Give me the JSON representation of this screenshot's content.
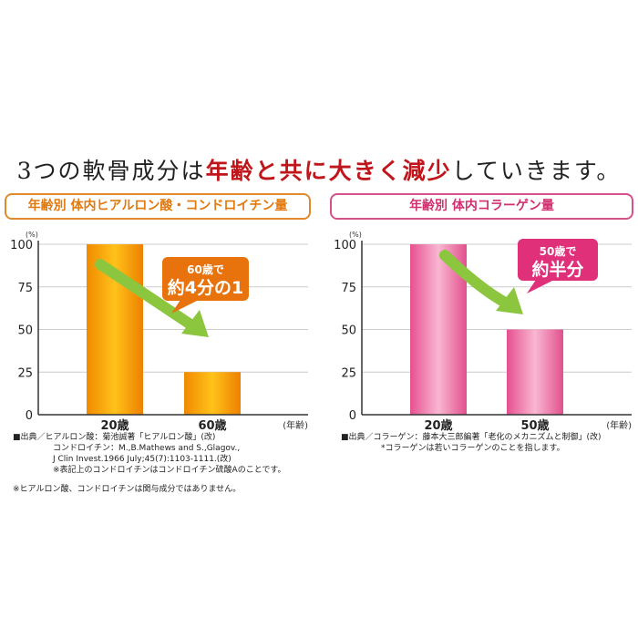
{
  "title": {
    "part1": "3つの軟骨成分は",
    "part2": "年齢と共に大きく減少",
    "part3": "していきます。"
  },
  "chart_data": [
    {
      "type": "bar",
      "title": "年齢別 体内ヒアルロン酸・コンドロイチン量",
      "categories": [
        "20歳",
        "60歳"
      ],
      "values": [
        100,
        25
      ],
      "ylabel": "(%)",
      "xlabel": "(年齢)",
      "ylim": [
        0,
        100
      ],
      "yticks": [
        "0",
        "25",
        "50",
        "75",
        "100"
      ],
      "grid": true,
      "color": "#f39a10",
      "callout": {
        "line1": "60歳で",
        "line2": "約4分の1"
      }
    },
    {
      "type": "bar",
      "title": "年齢別 体内コラーゲン量",
      "categories": [
        "20歳",
        "50歳"
      ],
      "values": [
        100,
        50
      ],
      "ylabel": "(%)",
      "xlabel": "(年齢)",
      "ylim": [
        0,
        100
      ],
      "yticks": [
        "0",
        "25",
        "50",
        "75",
        "100"
      ],
      "grid": true,
      "color": "#ea5a98",
      "callout": {
        "line1": "50歳で",
        "line2": "約半分"
      }
    }
  ],
  "notes_left": [
    "■出典／ヒアルロン酸：菊池誠著「ヒアルロン酸」(改)",
    "コンドロイチン：M.,B.Mathews and S.,Glagov.,",
    "J Clin Invest.1966 July;45(7):1103-1111.(改)",
    "※表記上のコンドロイチンはコンドロイチン硫酸Aのことです。"
  ],
  "notes_right": [
    "■出典／コラーゲン：藤本大三郎編著「老化のメカニズムと制御」(改)",
    "*コラーゲンは若いコラーゲンのことを指します。"
  ],
  "footnote": "※ヒアルロン酸、コンドロイチンは関与成分ではありません。"
}
